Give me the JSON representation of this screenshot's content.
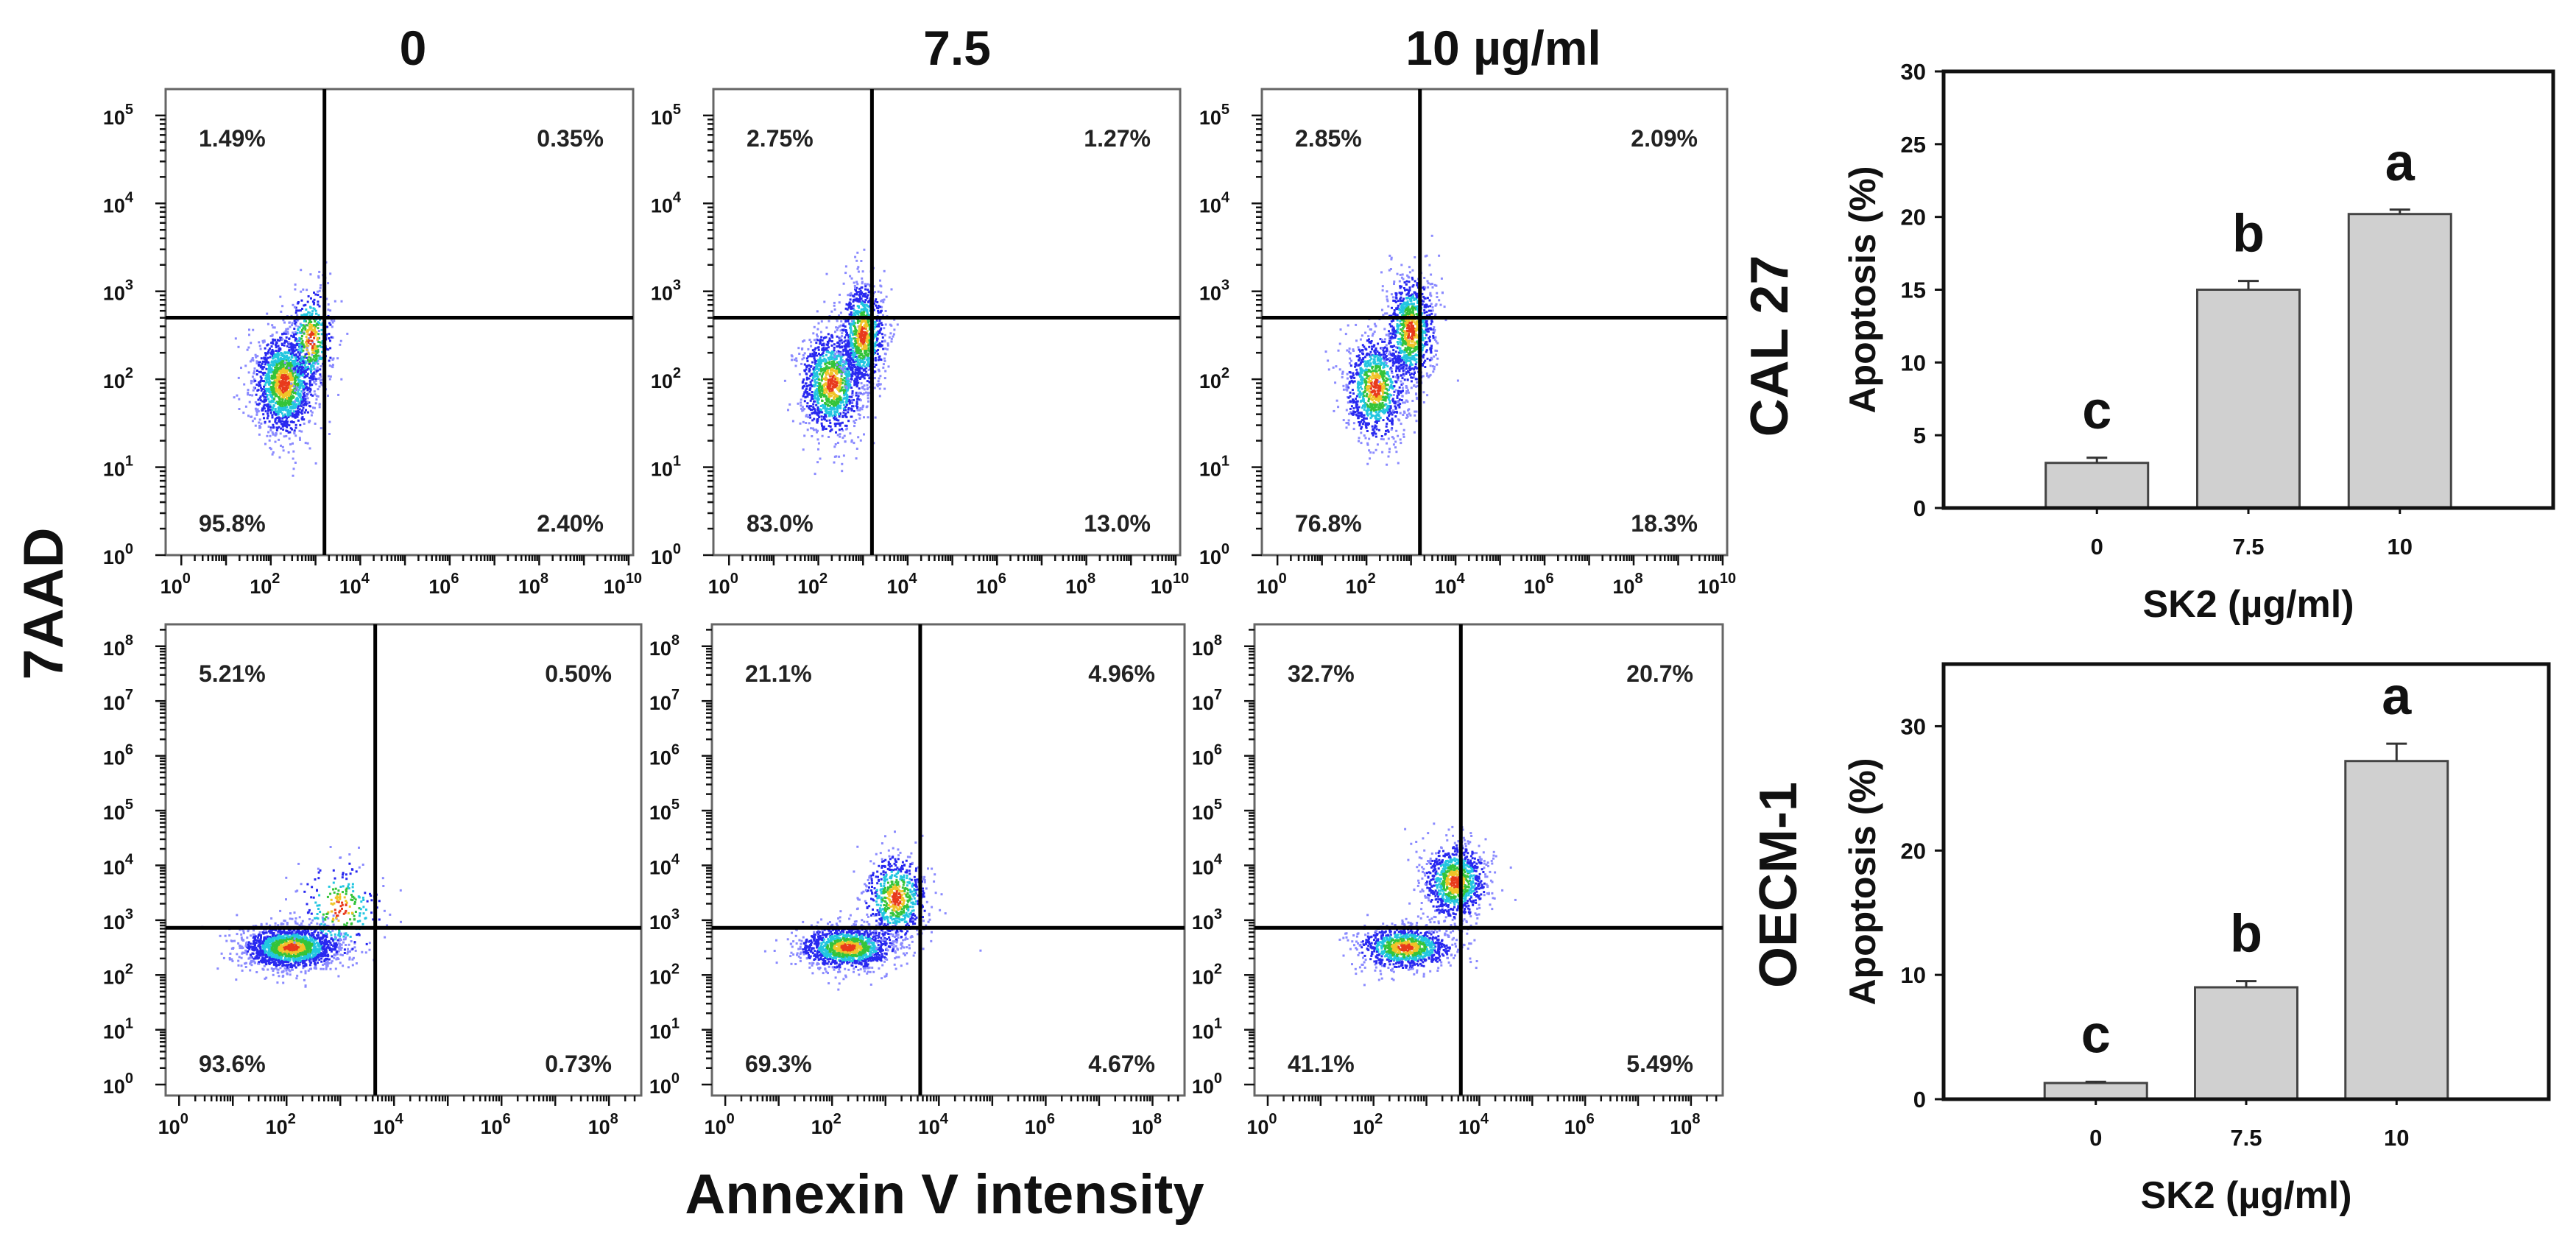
{
  "figure": {
    "column_titles": [
      "0",
      "7.5",
      "10 µg/ml"
    ],
    "row_labels": [
      "CAL 27",
      "OECM-1"
    ],
    "x_axis_label": "Annexin V intensity",
    "y_axis_label": "7AAD"
  },
  "chart_data": [
    {
      "type": "scatter",
      "name": "CAL 27 - 0",
      "row": 0,
      "col": 0,
      "xlim": [
        -0.35,
        10.1
      ],
      "ylim": [
        0,
        5.3
      ],
      "x_tick_exponents": [
        "0",
        "2",
        "4",
        "6",
        "8",
        "10"
      ],
      "y_tick_exponents": [
        "0",
        "1",
        "2",
        "3",
        "4",
        "5"
      ],
      "gate": {
        "x": 3.2,
        "y": 2.7
      },
      "quadrants": {
        "upper_left": "1.49%",
        "upper_right": "0.35%",
        "lower_left": "95.8%",
        "lower_right": "2.40%"
      }
    },
    {
      "type": "scatter",
      "name": "CAL 27 - 7.5",
      "row": 0,
      "col": 1,
      "xlim": [
        -0.35,
        10.1
      ],
      "ylim": [
        0,
        5.3
      ],
      "x_tick_exponents": [
        "0",
        "2",
        "4",
        "6",
        "8",
        "10"
      ],
      "y_tick_exponents": [
        "0",
        "1",
        "2",
        "3",
        "4",
        "5"
      ],
      "gate": {
        "x": 3.2,
        "y": 2.7
      },
      "quadrants": {
        "upper_left": "2.75%",
        "upper_right": "1.27%",
        "lower_left": "83.0%",
        "lower_right": "13.0%"
      }
    },
    {
      "type": "scatter",
      "name": "CAL 27 - 10",
      "row": 0,
      "col": 2,
      "xlim": [
        -0.35,
        10.1
      ],
      "ylim": [
        0,
        5.3
      ],
      "x_tick_exponents": [
        "0",
        "2",
        "4",
        "6",
        "8",
        "10"
      ],
      "y_tick_exponents": [
        "0",
        "1",
        "2",
        "3",
        "4",
        "5"
      ],
      "gate": {
        "x": 3.2,
        "y": 2.7
      },
      "quadrants": {
        "upper_left": "2.85%",
        "upper_right": "2.09%",
        "lower_left": "76.8%",
        "lower_right": "18.3%"
      }
    },
    {
      "type": "scatter",
      "name": "OECM-1 - 0",
      "row": 1,
      "col": 0,
      "xlim": [
        -0.25,
        8.6
      ],
      "ylim": [
        -0.2,
        8.4
      ],
      "x_tick_exponents": [
        "0",
        "2",
        "4",
        "6",
        "8"
      ],
      "y_tick_exponents": [
        "0",
        "1",
        "2",
        "3",
        "4",
        "5",
        "6",
        "7",
        "8"
      ],
      "gate": {
        "x": 3.65,
        "y": 2.86
      },
      "quadrants": {
        "upper_left": "5.21%",
        "upper_right": "0.50%",
        "lower_left": "93.6%",
        "lower_right": "0.73%"
      }
    },
    {
      "type": "scatter",
      "name": "OECM-1 - 7.5",
      "row": 1,
      "col": 1,
      "xlim": [
        -0.25,
        8.6
      ],
      "ylim": [
        -0.2,
        8.4
      ],
      "x_tick_exponents": [
        "0",
        "2",
        "4",
        "6",
        "8"
      ],
      "y_tick_exponents": [
        "0",
        "1",
        "2",
        "3",
        "4",
        "5",
        "6",
        "7",
        "8"
      ],
      "gate": {
        "x": 3.65,
        "y": 2.86
      },
      "quadrants": {
        "upper_left": "21.1%",
        "upper_right": "4.96%",
        "lower_left": "69.3%",
        "lower_right": "4.67%"
      }
    },
    {
      "type": "scatter",
      "name": "OECM-1 - 10",
      "row": 1,
      "col": 2,
      "xlim": [
        -0.25,
        8.6
      ],
      "ylim": [
        -0.2,
        8.4
      ],
      "x_tick_exponents": [
        "0",
        "2",
        "4",
        "6",
        "8"
      ],
      "y_tick_exponents": [
        "0",
        "1",
        "2",
        "3",
        "4",
        "5",
        "6",
        "7",
        "8"
      ],
      "gate": {
        "x": 3.65,
        "y": 2.86
      },
      "quadrants": {
        "upper_left": "32.7%",
        "upper_right": "20.7%",
        "lower_left": "41.1%",
        "lower_right": "5.49%"
      }
    },
    {
      "type": "bar",
      "name": "CAL 27 apoptosis",
      "categories": [
        "0",
        "7.5",
        "10"
      ],
      "values": [
        3.1,
        15.0,
        20.2
      ],
      "errors": [
        0.35,
        0.6,
        0.3
      ],
      "significance": [
        "c",
        "b",
        "a"
      ],
      "xlabel": "SK2 (µg/ml)",
      "ylabel": "Apoptosis (%)",
      "ylim": [
        0,
        30
      ],
      "yticks": [
        "0",
        "5",
        "10",
        "15",
        "20",
        "25",
        "30"
      ]
    },
    {
      "type": "bar",
      "name": "OECM-1 apoptosis",
      "categories": [
        "0",
        "7.5",
        "10"
      ],
      "values": [
        1.3,
        9.0,
        27.2
      ],
      "errors": [
        0.1,
        0.5,
        1.4
      ],
      "significance": [
        "c",
        "b",
        "a"
      ],
      "xlabel": "SK2 (µg/ml)",
      "ylabel": "Apoptosis (%)",
      "ylim": [
        0,
        35
      ],
      "yticks": [
        "0",
        "10",
        "20",
        "30"
      ]
    }
  ],
  "colors": {
    "bar_fill": "#d0d0d0",
    "gate": "#000000",
    "frame": "#666666"
  }
}
